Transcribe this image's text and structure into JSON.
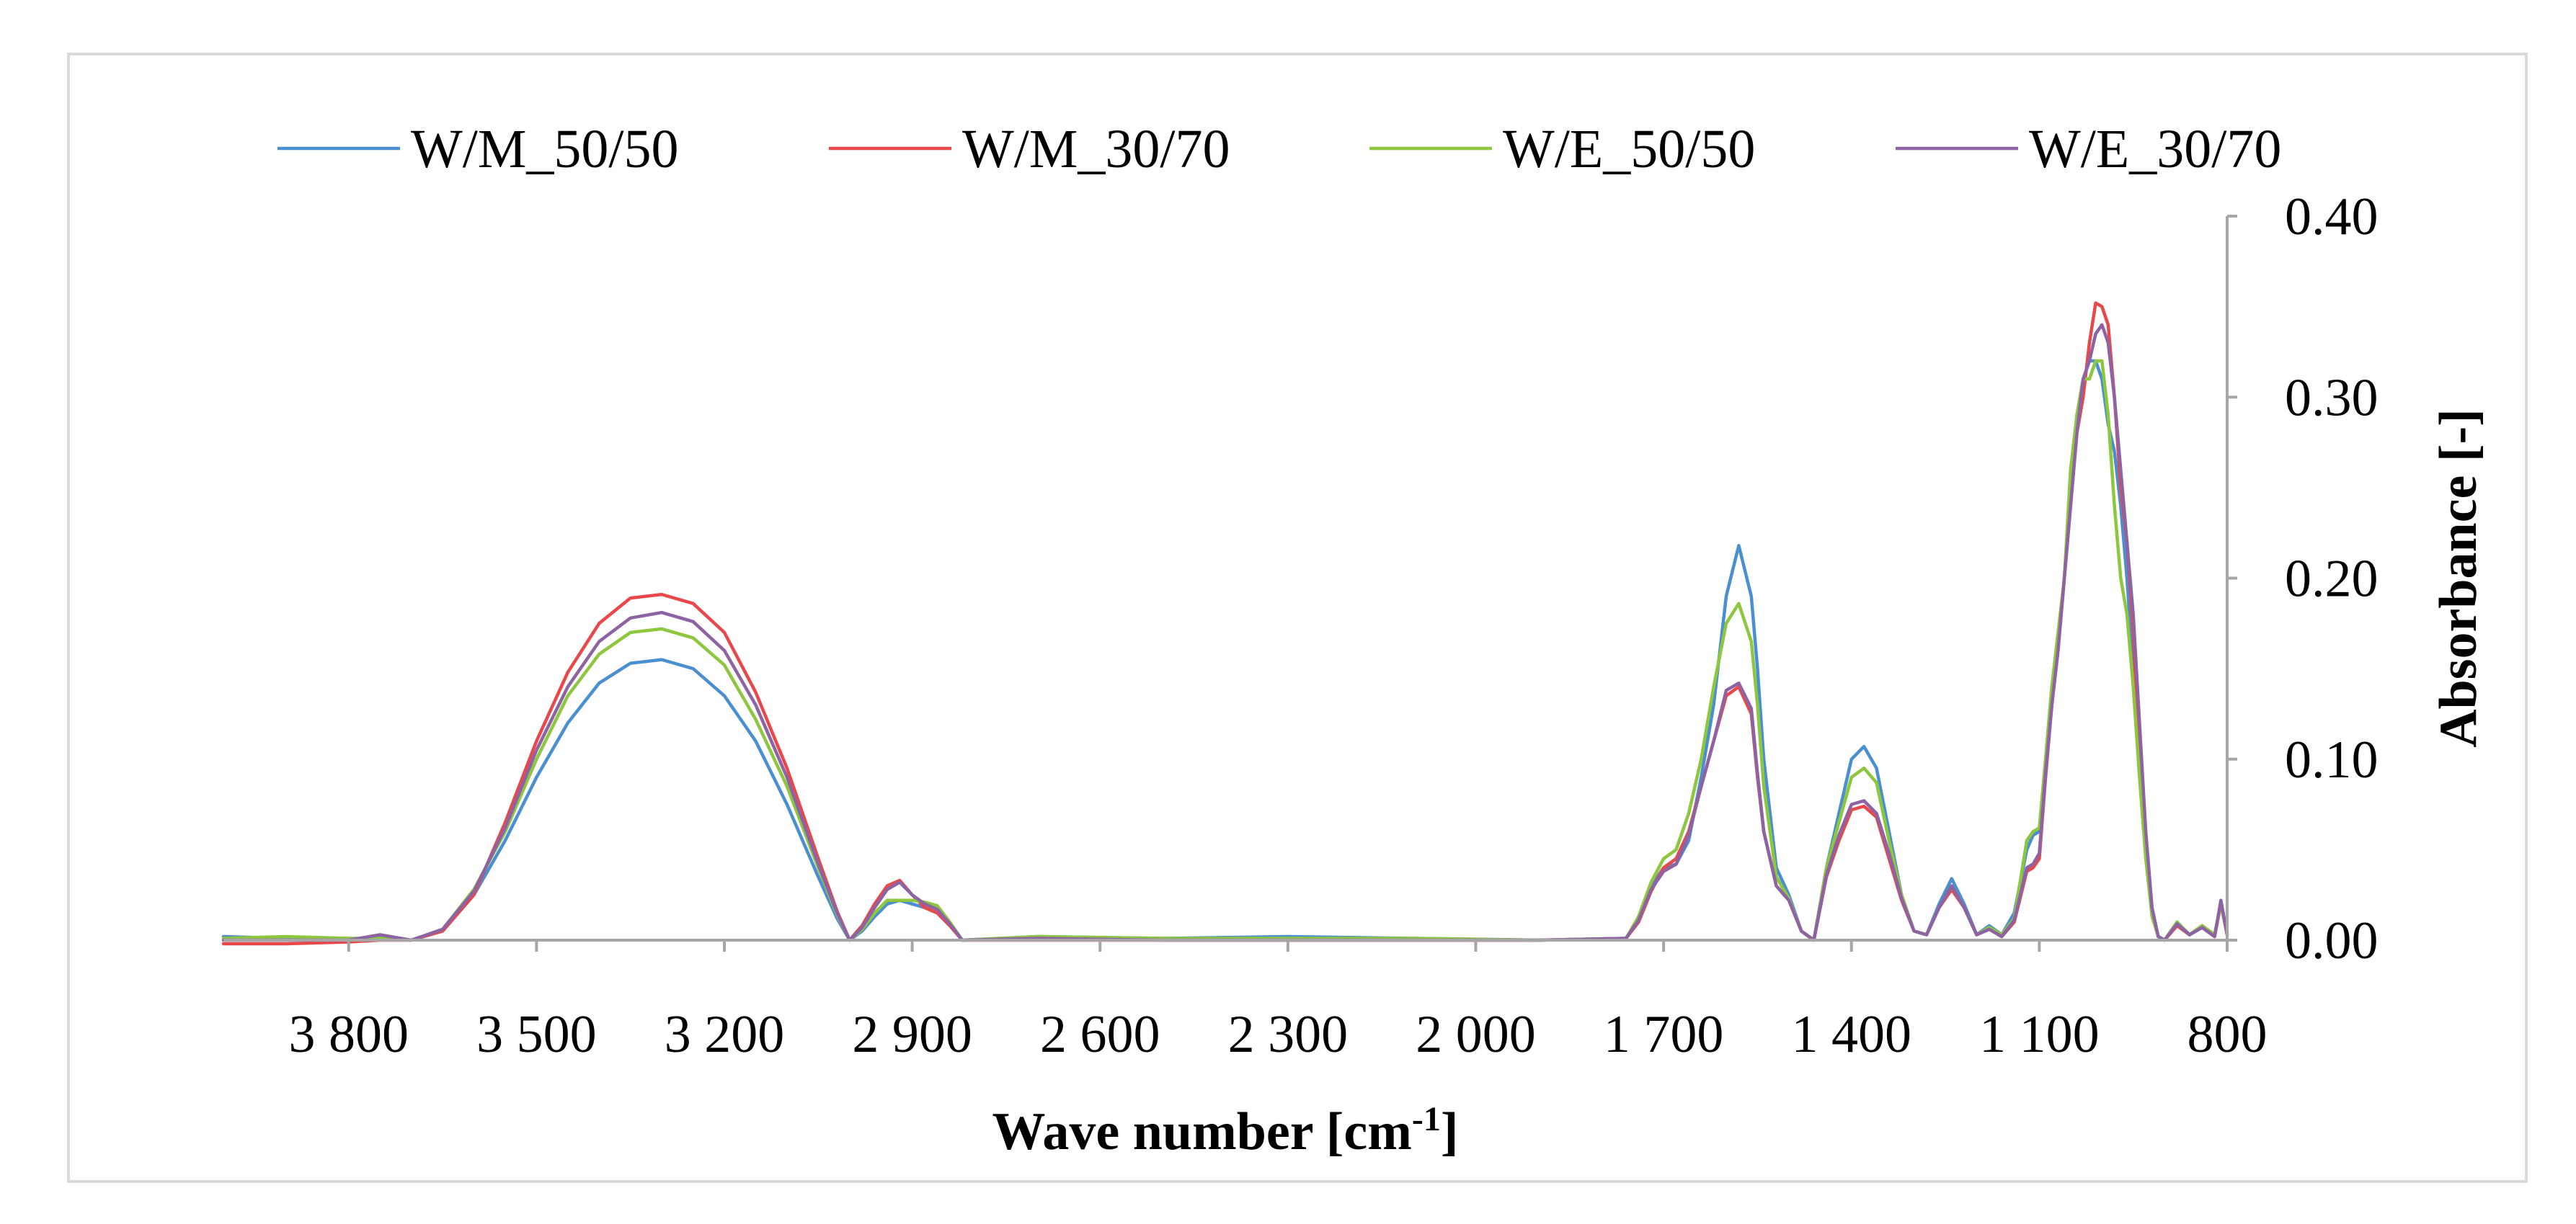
{
  "chart_data": {
    "type": "line",
    "title": "",
    "xlabel": "Wave number [cm",
    "xlabel_sup": "-1",
    "xlabel_end": "]",
    "ylabel": "Absorbance [-]",
    "xlim": [
      4000,
      800
    ],
    "x_reversed": true,
    "ylim": [
      0,
      0.4
    ],
    "y_axis_side": "right",
    "legend_position": "top",
    "grid": false,
    "x_ticks": [
      {
        "value": 3800,
        "label": "3 800"
      },
      {
        "value": 3500,
        "label": "3 500"
      },
      {
        "value": 3200,
        "label": "3 200"
      },
      {
        "value": 2900,
        "label": "2 900"
      },
      {
        "value": 2600,
        "label": "2 600"
      },
      {
        "value": 2300,
        "label": "2 300"
      },
      {
        "value": 2000,
        "label": "2 000"
      },
      {
        "value": 1700,
        "label": "1 700"
      },
      {
        "value": 1400,
        "label": "1 400"
      },
      {
        "value": 1100,
        "label": "1 100"
      },
      {
        "value": 800,
        "label": "800"
      }
    ],
    "y_ticks": [
      {
        "value": 0.0,
        "label": "0.00"
      },
      {
        "value": 0.1,
        "label": "0.10"
      },
      {
        "value": 0.2,
        "label": "0.20"
      },
      {
        "value": 0.3,
        "label": "0.30"
      },
      {
        "value": 0.4,
        "label": "0.40"
      }
    ],
    "series": [
      {
        "name": "W/M_50/50",
        "color": "#4a8fcf",
        "x": [
          4000,
          3900,
          3800,
          3750,
          3700,
          3650,
          3600,
          3550,
          3500,
          3450,
          3400,
          3350,
          3300,
          3250,
          3200,
          3150,
          3100,
          3050,
          3020,
          3000,
          2980,
          2960,
          2940,
          2920,
          2900,
          2880,
          2860,
          2840,
          2820,
          2700,
          2500,
          2300,
          2100,
          1900,
          1760,
          1740,
          1720,
          1700,
          1680,
          1660,
          1640,
          1620,
          1600,
          1580,
          1560,
          1550,
          1540,
          1520,
          1500,
          1480,
          1460,
          1440,
          1420,
          1400,
          1380,
          1360,
          1340,
          1320,
          1300,
          1280,
          1260,
          1240,
          1220,
          1200,
          1180,
          1160,
          1140,
          1120,
          1110,
          1100,
          1090,
          1080,
          1070,
          1060,
          1050,
          1040,
          1030,
          1020,
          1010,
          1000,
          990,
          980,
          970,
          960,
          950,
          940,
          930,
          920,
          910,
          900,
          880,
          860,
          840,
          820,
          810,
          800
        ],
        "y": [
          0.002,
          0.001,
          0.0,
          0.002,
          0.0,
          0.005,
          0.025,
          0.055,
          0.09,
          0.12,
          0.142,
          0.153,
          0.155,
          0.15,
          0.135,
          0.11,
          0.075,
          0.035,
          0.012,
          0.0,
          0.005,
          0.013,
          0.02,
          0.022,
          0.02,
          0.018,
          0.015,
          0.008,
          0.0,
          0.002,
          0.001,
          0.002,
          0.001,
          0.0,
          0.001,
          0.012,
          0.03,
          0.04,
          0.042,
          0.055,
          0.09,
          0.13,
          0.19,
          0.218,
          0.19,
          0.15,
          0.1,
          0.04,
          0.025,
          0.005,
          0.0,
          0.04,
          0.07,
          0.1,
          0.107,
          0.095,
          0.06,
          0.025,
          0.005,
          0.003,
          0.02,
          0.034,
          0.02,
          0.003,
          0.008,
          0.003,
          0.015,
          0.05,
          0.058,
          0.06,
          0.1,
          0.14,
          0.165,
          0.2,
          0.25,
          0.29,
          0.31,
          0.32,
          0.32,
          0.31,
          0.285,
          0.27,
          0.24,
          0.2,
          0.15,
          0.1,
          0.05,
          0.015,
          0.002,
          0.0,
          0.01,
          0.003,
          0.008,
          0.003,
          0.02,
          0.004
        ]
      },
      {
        "name": "W/M_30/70",
        "color": "#e8484a",
        "x": [
          4000,
          3900,
          3800,
          3750,
          3700,
          3650,
          3600,
          3550,
          3500,
          3450,
          3400,
          3350,
          3300,
          3250,
          3200,
          3150,
          3100,
          3050,
          3020,
          3000,
          2980,
          2960,
          2940,
          2920,
          2900,
          2880,
          2860,
          2840,
          2820,
          2700,
          2500,
          2300,
          2100,
          1900,
          1760,
          1740,
          1720,
          1700,
          1680,
          1660,
          1640,
          1620,
          1600,
          1580,
          1560,
          1550,
          1540,
          1520,
          1500,
          1480,
          1460,
          1440,
          1420,
          1400,
          1380,
          1360,
          1340,
          1320,
          1300,
          1280,
          1260,
          1240,
          1220,
          1200,
          1180,
          1160,
          1140,
          1120,
          1110,
          1100,
          1090,
          1080,
          1070,
          1060,
          1050,
          1040,
          1030,
          1020,
          1010,
          1000,
          990,
          980,
          970,
          960,
          950,
          940,
          930,
          920,
          910,
          900,
          880,
          860,
          840,
          820,
          810,
          800
        ],
        "y": [
          -0.002,
          -0.002,
          -0.001,
          0.0,
          0.0,
          0.005,
          0.025,
          0.065,
          0.11,
          0.148,
          0.175,
          0.189,
          0.191,
          0.186,
          0.17,
          0.137,
          0.095,
          0.045,
          0.016,
          0.0,
          0.008,
          0.02,
          0.03,
          0.033,
          0.025,
          0.018,
          0.015,
          0.008,
          0.0,
          0.0,
          0.0,
          0.0,
          0.0,
          0.0,
          0.001,
          0.01,
          0.027,
          0.04,
          0.045,
          0.06,
          0.085,
          0.11,
          0.135,
          0.14,
          0.125,
          0.09,
          0.06,
          0.03,
          0.022,
          0.005,
          0.0,
          0.035,
          0.055,
          0.072,
          0.074,
          0.068,
          0.045,
          0.022,
          0.005,
          0.003,
          0.018,
          0.028,
          0.018,
          0.003,
          0.006,
          0.002,
          0.01,
          0.038,
          0.04,
          0.045,
          0.09,
          0.13,
          0.16,
          0.2,
          0.24,
          0.28,
          0.3,
          0.33,
          0.352,
          0.35,
          0.34,
          0.3,
          0.25,
          0.22,
          0.17,
          0.1,
          0.05,
          0.015,
          0.002,
          0.0,
          0.008,
          0.003,
          0.007,
          0.002,
          0.02,
          0.003
        ]
      },
      {
        "name": "W/E_50/50",
        "color": "#8dc63f",
        "x": [
          4000,
          3900,
          3800,
          3750,
          3700,
          3650,
          3600,
          3550,
          3500,
          3450,
          3400,
          3350,
          3300,
          3250,
          3200,
          3150,
          3100,
          3050,
          3020,
          3000,
          2980,
          2960,
          2940,
          2920,
          2900,
          2880,
          2860,
          2840,
          2820,
          2700,
          2500,
          2300,
          2100,
          1900,
          1760,
          1740,
          1720,
          1700,
          1680,
          1660,
          1640,
          1620,
          1600,
          1580,
          1560,
          1550,
          1540,
          1520,
          1500,
          1480,
          1460,
          1440,
          1420,
          1400,
          1380,
          1360,
          1340,
          1320,
          1300,
          1280,
          1260,
          1240,
          1220,
          1200,
          1180,
          1160,
          1140,
          1120,
          1110,
          1100,
          1090,
          1080,
          1070,
          1060,
          1050,
          1040,
          1030,
          1020,
          1010,
          1000,
          990,
          980,
          970,
          960,
          950,
          940,
          930,
          920,
          910,
          900,
          880,
          860,
          840,
          820,
          810,
          800
        ],
        "y": [
          0.001,
          0.002,
          0.001,
          0.001,
          0.0,
          0.006,
          0.028,
          0.06,
          0.1,
          0.135,
          0.158,
          0.17,
          0.172,
          0.167,
          0.152,
          0.122,
          0.085,
          0.04,
          0.014,
          0.0,
          0.006,
          0.015,
          0.022,
          0.022,
          0.022,
          0.021,
          0.019,
          0.01,
          0.0,
          0.002,
          0.001,
          0.001,
          0.001,
          0.0,
          0.001,
          0.013,
          0.032,
          0.045,
          0.05,
          0.07,
          0.1,
          0.14,
          0.175,
          0.186,
          0.165,
          0.13,
          0.085,
          0.035,
          0.023,
          0.005,
          0.0,
          0.04,
          0.065,
          0.09,
          0.095,
          0.087,
          0.055,
          0.025,
          0.005,
          0.003,
          0.018,
          0.03,
          0.018,
          0.003,
          0.007,
          0.003,
          0.012,
          0.055,
          0.06,
          0.062,
          0.1,
          0.14,
          0.17,
          0.2,
          0.26,
          0.29,
          0.31,
          0.31,
          0.32,
          0.32,
          0.29,
          0.24,
          0.2,
          0.18,
          0.14,
          0.09,
          0.045,
          0.013,
          0.002,
          0.0,
          0.01,
          0.003,
          0.008,
          0.003,
          0.02,
          0.004
        ]
      },
      {
        "name": "W/E_30/70",
        "color": "#8e63a3",
        "x": [
          4000,
          3900,
          3800,
          3750,
          3700,
          3650,
          3600,
          3550,
          3500,
          3450,
          3400,
          3350,
          3300,
          3250,
          3200,
          3150,
          3100,
          3050,
          3020,
          3000,
          2980,
          2960,
          2940,
          2920,
          2900,
          2880,
          2860,
          2840,
          2820,
          2700,
          2500,
          2300,
          2100,
          1900,
          1760,
          1740,
          1720,
          1700,
          1680,
          1660,
          1640,
          1620,
          1600,
          1580,
          1560,
          1550,
          1540,
          1520,
          1500,
          1480,
          1460,
          1440,
          1420,
          1400,
          1380,
          1360,
          1340,
          1320,
          1300,
          1280,
          1260,
          1240,
          1220,
          1200,
          1180,
          1160,
          1140,
          1120,
          1110,
          1100,
          1090,
          1080,
          1070,
          1060,
          1050,
          1040,
          1030,
          1020,
          1010,
          1000,
          990,
          980,
          970,
          960,
          950,
          940,
          930,
          920,
          910,
          900,
          880,
          860,
          840,
          820,
          810,
          800
        ],
        "y": [
          0.0,
          0.0,
          0.0,
          0.003,
          0.0,
          0.006,
          0.027,
          0.062,
          0.105,
          0.14,
          0.165,
          0.178,
          0.181,
          0.176,
          0.16,
          0.13,
          0.09,
          0.042,
          0.015,
          0.0,
          0.007,
          0.018,
          0.028,
          0.032,
          0.025,
          0.02,
          0.017,
          0.009,
          0.0,
          0.001,
          0.0,
          0.0,
          0.0,
          0.0,
          0.001,
          0.011,
          0.028,
          0.038,
          0.042,
          0.058,
          0.085,
          0.11,
          0.138,
          0.142,
          0.128,
          0.092,
          0.06,
          0.03,
          0.022,
          0.005,
          0.0,
          0.036,
          0.058,
          0.075,
          0.077,
          0.07,
          0.048,
          0.023,
          0.005,
          0.003,
          0.018,
          0.03,
          0.018,
          0.003,
          0.006,
          0.002,
          0.011,
          0.04,
          0.042,
          0.048,
          0.092,
          0.13,
          0.16,
          0.2,
          0.24,
          0.28,
          0.31,
          0.32,
          0.335,
          0.34,
          0.33,
          0.3,
          0.26,
          0.22,
          0.18,
          0.12,
          0.06,
          0.018,
          0.002,
          0.0,
          0.009,
          0.003,
          0.007,
          0.002,
          0.022,
          0.003
        ]
      }
    ]
  }
}
